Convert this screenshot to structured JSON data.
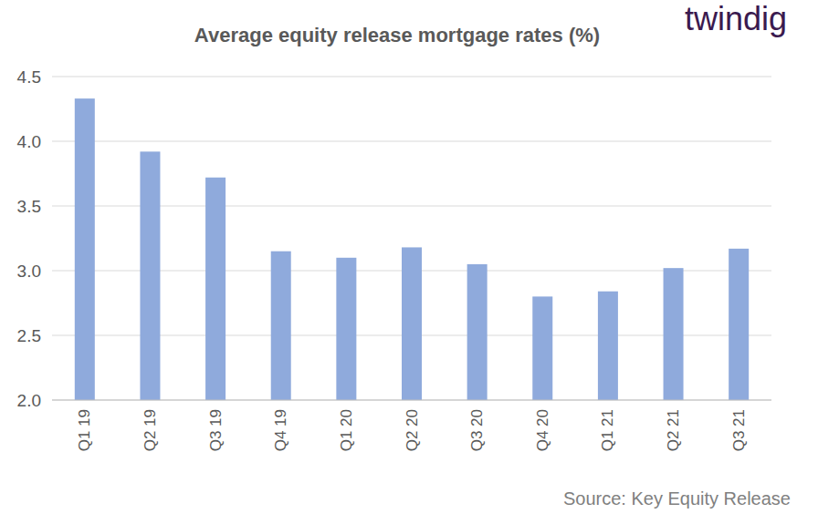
{
  "chart_data": {
    "type": "bar",
    "title": "Average equity release mortgage rates (%)",
    "logo": "twindig",
    "source": "Source: Key Equity Release",
    "categories": [
      "Q1 19",
      "Q2 19",
      "Q3 19",
      "Q4 19",
      "Q1 20",
      "Q2 20",
      "Q3 20",
      "Q4 20",
      "Q1 21",
      "Q2 21",
      "Q3 21"
    ],
    "values": [
      4.33,
      3.92,
      3.72,
      3.15,
      3.1,
      3.18,
      3.05,
      2.8,
      2.84,
      3.02,
      3.17
    ],
    "color": "#8faadc",
    "ylim": [
      2,
      4.5
    ],
    "yticks": [
      {
        "value": 2,
        "label": "2.0"
      },
      2.5,
      {
        "value": 3,
        "label": "3.0"
      },
      3.5,
      {
        "value": 4,
        "label": "4.0"
      },
      4.5
    ],
    "grid": true
  }
}
